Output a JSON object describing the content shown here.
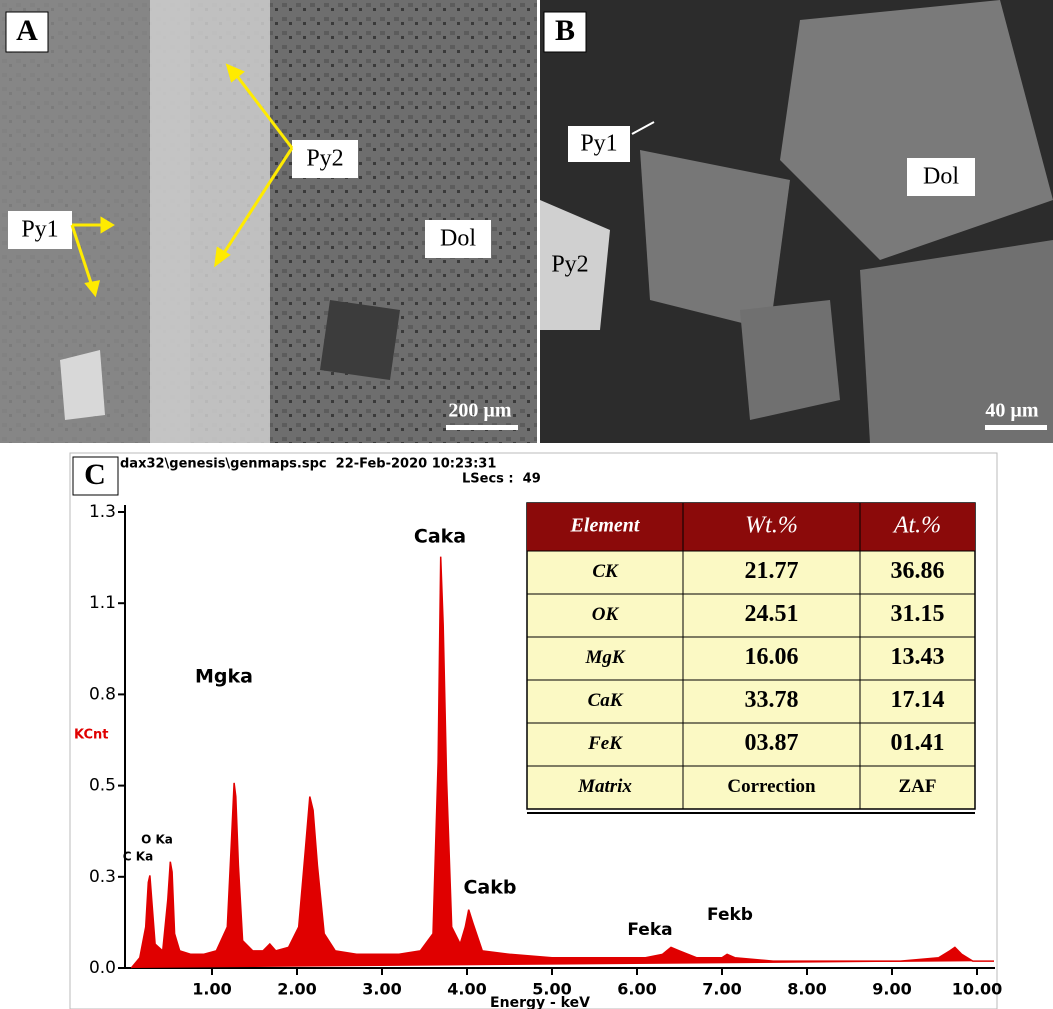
{
  "panels": {
    "a": {
      "label": "A",
      "py2": "Py2",
      "py1": "Py1",
      "dol": "Dol",
      "scale_bar": "200 µm"
    },
    "b": {
      "label": "B",
      "py1": "Py1",
      "py2": "Py2",
      "dol": "Dol",
      "scale_bar": "40 µm"
    },
    "c": {
      "label": "C",
      "file": "dax32\\genesis\\genmaps.spc  22-Feb-2020 10:23:31",
      "lsecs": "LSecs :  49"
    }
  },
  "chart_data": {
    "type": "area",
    "ylabel": "KCnt",
    "xlabel": "Energy - keV",
    "color": "#e00000",
    "x": [
      0.05,
      0.15,
      0.22,
      0.25,
      0.27,
      0.29,
      0.33,
      0.42,
      0.48,
      0.51,
      0.53,
      0.56,
      0.62,
      0.75,
      0.9,
      1.05,
      1.18,
      1.23,
      1.26,
      1.28,
      1.31,
      1.36,
      1.48,
      1.6,
      1.68,
      1.75,
      1.9,
      2.02,
      2.1,
      2.15,
      2.19,
      2.24,
      2.32,
      2.45,
      2.7,
      2.95,
      3.2,
      3.45,
      3.6,
      3.66,
      3.69,
      3.72,
      3.76,
      3.82,
      3.92,
      3.98,
      4.02,
      4.07,
      4.18,
      4.5,
      5.0,
      5.5,
      5.9,
      6.1,
      6.3,
      6.4,
      6.5,
      6.7,
      7.0,
      7.06,
      7.15,
      7.6,
      8.1,
      8.6,
      9.1,
      9.55,
      9.68,
      9.74,
      9.82,
      9.95,
      10.2
    ],
    "values": [
      0.0,
      0.03,
      0.12,
      0.25,
      0.27,
      0.2,
      0.07,
      0.05,
      0.2,
      0.31,
      0.28,
      0.1,
      0.05,
      0.04,
      0.04,
      0.05,
      0.12,
      0.38,
      0.54,
      0.5,
      0.3,
      0.08,
      0.05,
      0.05,
      0.07,
      0.05,
      0.06,
      0.12,
      0.35,
      0.5,
      0.46,
      0.3,
      0.1,
      0.05,
      0.04,
      0.04,
      0.04,
      0.05,
      0.1,
      0.6,
      1.2,
      1.0,
      0.55,
      0.12,
      0.07,
      0.12,
      0.17,
      0.13,
      0.05,
      0.04,
      0.03,
      0.03,
      0.03,
      0.03,
      0.04,
      0.06,
      0.05,
      0.03,
      0.03,
      0.04,
      0.03,
      0.02,
      0.02,
      0.02,
      0.02,
      0.03,
      0.05,
      0.06,
      0.04,
      0.02,
      0.02
    ],
    "xlim": [
      0,
      10.2
    ],
    "ylim": [
      0,
      1.33
    ],
    "xticks": [
      {
        "value": 1,
        "label": "1.00"
      },
      {
        "value": 2,
        "label": "2.00"
      },
      {
        "value": 3,
        "label": "3.00"
      },
      {
        "value": 4,
        "label": "4.00"
      },
      {
        "value": 5,
        "label": "5.00"
      },
      {
        "value": 6,
        "label": "6.00"
      },
      {
        "value": 7,
        "label": "7.00"
      },
      {
        "value": 8,
        "label": "8.00"
      },
      {
        "value": 9,
        "label": "9.00"
      },
      {
        "value": 10,
        "label": "10.00"
      }
    ],
    "yticks": [
      {
        "value": 0,
        "label": "0.0"
      },
      {
        "value": 0.266,
        "label": "0.3"
      },
      {
        "value": 0.532,
        "label": "0.5"
      },
      {
        "value": 0.798,
        "label": "0.8"
      },
      {
        "value": 1.064,
        "label": "1.1"
      },
      {
        "value": 1.33,
        "label": "1.3"
      }
    ],
    "annotations": [
      "C Ka",
      "O Ka",
      "Mgka",
      "Caka",
      "Cakb",
      "Feka",
      "Fekb"
    ]
  },
  "table": {
    "header": [
      "Element",
      "Wt.%",
      "At.%"
    ],
    "rows": [
      [
        "CK",
        "21.77",
        "36.86"
      ],
      [
        "OK",
        "24.51",
        "31.15"
      ],
      [
        "MgK",
        "16.06",
        "13.43"
      ],
      [
        "CaK",
        "33.78",
        "17.14"
      ],
      [
        "FeK",
        "03.87",
        "01.41"
      ],
      [
        "Matrix",
        "Correction",
        "ZAF"
      ]
    ]
  }
}
